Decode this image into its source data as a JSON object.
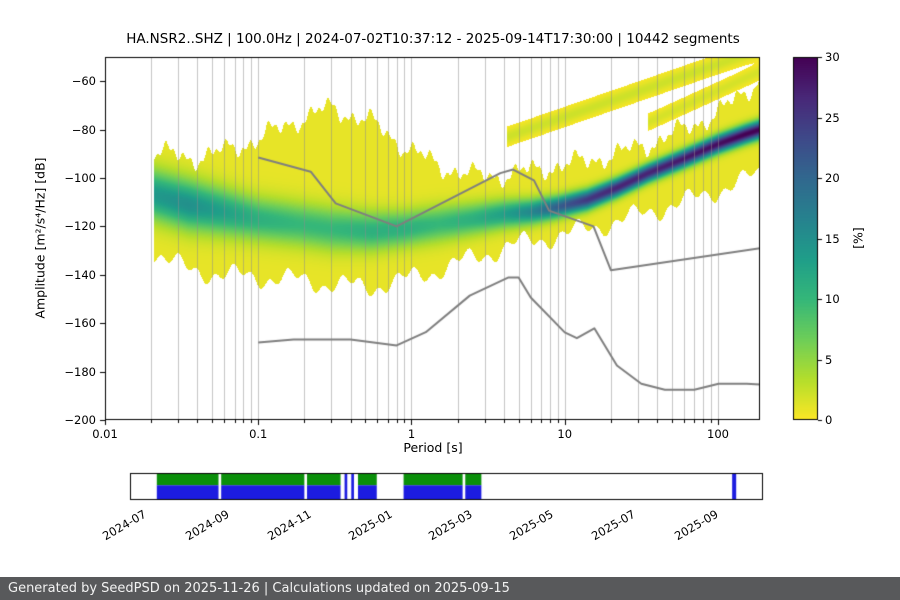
{
  "figure": {
    "footer": "Generated by SeedPSD on 2025-11-26 | Calculations updated on 2025-09-15"
  },
  "chart_data": {
    "type": "heatmap",
    "title": "HA.NSR2..SHZ | 100.0Hz | 2024-07-02T10:37:12 - 2025-09-14T17:30:00 | 10442 segments",
    "xlabel": "Period [s]",
    "ylabel": "Amplitude [m²/s⁴/Hz] [dB]",
    "x_scale": "log",
    "xlim": [
      0.01,
      188
    ],
    "ylim": [
      -200,
      -50
    ],
    "grid": "vertical-log",
    "grid_color": "#8c8c8c",
    "xticks": {
      "values": [
        0.01,
        0.1,
        1,
        10,
        100
      ],
      "labels": [
        "0.01",
        "0.1",
        "1",
        "10",
        "100"
      ]
    },
    "yticks": {
      "values": [
        -200,
        -180,
        -160,
        -140,
        -120,
        -100,
        -80,
        -60
      ],
      "labels": [
        "−200",
        "−180",
        "−160",
        "−140",
        "−120",
        "−100",
        "−80",
        "−60"
      ]
    },
    "colorbar": {
      "label": "[%]",
      "min": 0,
      "max": 30,
      "ticks": [
        0,
        5,
        10,
        15,
        20,
        25,
        30
      ]
    },
    "colormap": {
      "name": "viridis_r",
      "stops": [
        "#440154",
        "#482878",
        "#3e4989",
        "#31688e",
        "#26828e",
        "#1f9e89",
        "#35b779",
        "#6ece58",
        "#b5de2b",
        "#fde725"
      ]
    },
    "background_percent": 1.0,
    "noise_models": {
      "color": "#7f7f7f",
      "high_noise_model": [
        [
          0.1,
          -91.5
        ],
        [
          0.22,
          -97.4
        ],
        [
          0.32,
          -110.5
        ],
        [
          0.8,
          -120.0
        ],
        [
          3.8,
          -98.0
        ],
        [
          4.6,
          -96.5
        ],
        [
          6.3,
          -101.0
        ],
        [
          7.9,
          -113.5
        ],
        [
          15.4,
          -120.0
        ],
        [
          20.0,
          -138.1
        ],
        [
          188.0,
          -129.0
        ]
      ],
      "low_noise_model": [
        [
          0.1,
          -168.0
        ],
        [
          0.17,
          -166.7
        ],
        [
          0.4,
          -166.7
        ],
        [
          0.8,
          -169.2
        ],
        [
          1.24,
          -163.7
        ],
        [
          2.4,
          -148.6
        ],
        [
          4.3,
          -141.1
        ],
        [
          5.0,
          -141.1
        ],
        [
          6.0,
          -149.4
        ],
        [
          10.0,
          -163.8
        ],
        [
          12.0,
          -166.2
        ],
        [
          15.6,
          -162.1
        ],
        [
          21.9,
          -177.5
        ],
        [
          31.6,
          -185.0
        ],
        [
          45.0,
          -187.5
        ],
        [
          70.0,
          -187.5
        ],
        [
          101.0,
          -185.0
        ],
        [
          154.0,
          -185.0
        ],
        [
          188.0,
          -185.3
        ]
      ]
    },
    "histogram_band": [
      {
        "p": 0.021,
        "top": -89,
        "bottom": -131,
        "center": -107,
        "sigma": 7.0,
        "peak": 13
      },
      {
        "p": 0.035,
        "top": -92,
        "bottom": -138,
        "center": -111,
        "sigma": 7.0,
        "peak": 14
      },
      {
        "p": 0.06,
        "top": -89,
        "bottom": -140,
        "center": -114,
        "sigma": 6.5,
        "peak": 12
      },
      {
        "p": 0.1,
        "top": -84,
        "bottom": -141,
        "center": -117,
        "sigma": 6.0,
        "peak": 10
      },
      {
        "p": 0.18,
        "top": -76,
        "bottom": -142,
        "center": -119,
        "sigma": 6.0,
        "peak": 9
      },
      {
        "p": 0.3,
        "top": -71,
        "bottom": -144,
        "center": -121,
        "sigma": 6.0,
        "peak": 9
      },
      {
        "p": 0.55,
        "top": -77,
        "bottom": -145,
        "center": -122,
        "sigma": 5.5,
        "peak": 10
      },
      {
        "p": 0.9,
        "top": -87,
        "bottom": -142,
        "center": -121,
        "sigma": 5.0,
        "peak": 10
      },
      {
        "p": 1.5,
        "top": -95,
        "bottom": -138,
        "center": -119,
        "sigma": 5.0,
        "peak": 9
      },
      {
        "p": 2.5,
        "top": -99,
        "bottom": -133,
        "center": -117,
        "sigma": 4.5,
        "peak": 10
      },
      {
        "p": 4.0,
        "top": -99,
        "bottom": -129,
        "center": -115,
        "sigma": 4.0,
        "peak": 12
      },
      {
        "p": 6.0,
        "top": -97,
        "bottom": -126,
        "center": -114,
        "sigma": 3.5,
        "peak": 15
      },
      {
        "p": 9.0,
        "top": -95,
        "bottom": -124,
        "center": -112,
        "sigma": 3.0,
        "peak": 20
      },
      {
        "p": 14.0,
        "top": -93,
        "bottom": -121,
        "center": -109,
        "sigma": 2.8,
        "peak": 24
      },
      {
        "p": 22.0,
        "top": -90,
        "bottom": -118,
        "center": -104,
        "sigma": 2.6,
        "peak": 26
      },
      {
        "p": 35.0,
        "top": -86,
        "bottom": -114,
        "center": -98,
        "sigma": 2.5,
        "peak": 26
      },
      {
        "p": 60.0,
        "top": -80,
        "bottom": -110,
        "center": -92,
        "sigma": 2.5,
        "peak": 27
      },
      {
        "p": 100.0,
        "top": -73,
        "bottom": -105,
        "center": -86,
        "sigma": 2.5,
        "peak": 28
      },
      {
        "p": 150.0,
        "top": -65,
        "bottom": -101,
        "center": -82,
        "sigma": 2.5,
        "peak": 29
      },
      {
        "p": 188.0,
        "top": -58,
        "bottom": -98,
        "center": -80,
        "sigma": 2.5,
        "peak": 29
      }
    ],
    "streaks": [
      {
        "from": [
          4.2,
          -83
        ],
        "to": [
          188,
          -47
        ],
        "value": 2.2,
        "sigma": 2.2
      },
      {
        "from": [
          35,
          -77
        ],
        "to": [
          188,
          -56
        ],
        "value": 1.8,
        "sigma": 2.0
      }
    ]
  },
  "timeline": {
    "range": [
      "2024-06-20",
      "2025-10-05"
    ],
    "coverage_color": "#0a8f0a",
    "psd_color": "#1c1ce0",
    "ticks": [
      {
        "date": "2024-07-01",
        "label": "2024-07"
      },
      {
        "date": "2024-09-01",
        "label": "2024-09"
      },
      {
        "date": "2024-11-01",
        "label": "2024-11"
      },
      {
        "date": "2025-01-01",
        "label": "2025-01"
      },
      {
        "date": "2025-03-01",
        "label": "2025-03"
      },
      {
        "date": "2025-05-01",
        "label": "2025-05"
      },
      {
        "date": "2025-07-01",
        "label": "2025-07"
      },
      {
        "date": "2025-09-01",
        "label": "2025-09"
      }
    ],
    "segments": [
      {
        "start": "2024-07-10",
        "end": "2024-08-25",
        "kind": "full"
      },
      {
        "start": "2024-08-27",
        "end": "2024-10-28",
        "kind": "full"
      },
      {
        "start": "2024-10-30",
        "end": "2024-11-24",
        "kind": "full"
      },
      {
        "start": "2024-11-27",
        "end": "2024-11-29",
        "kind": "blue"
      },
      {
        "start": "2024-12-02",
        "end": "2024-12-04",
        "kind": "blue"
      },
      {
        "start": "2024-12-07",
        "end": "2024-12-21",
        "kind": "full"
      },
      {
        "start": "2025-01-10",
        "end": "2025-02-23",
        "kind": "full"
      },
      {
        "start": "2025-02-25",
        "end": "2025-03-09",
        "kind": "full"
      },
      {
        "start": "2025-09-12",
        "end": "2025-09-15",
        "kind": "blue"
      }
    ]
  }
}
